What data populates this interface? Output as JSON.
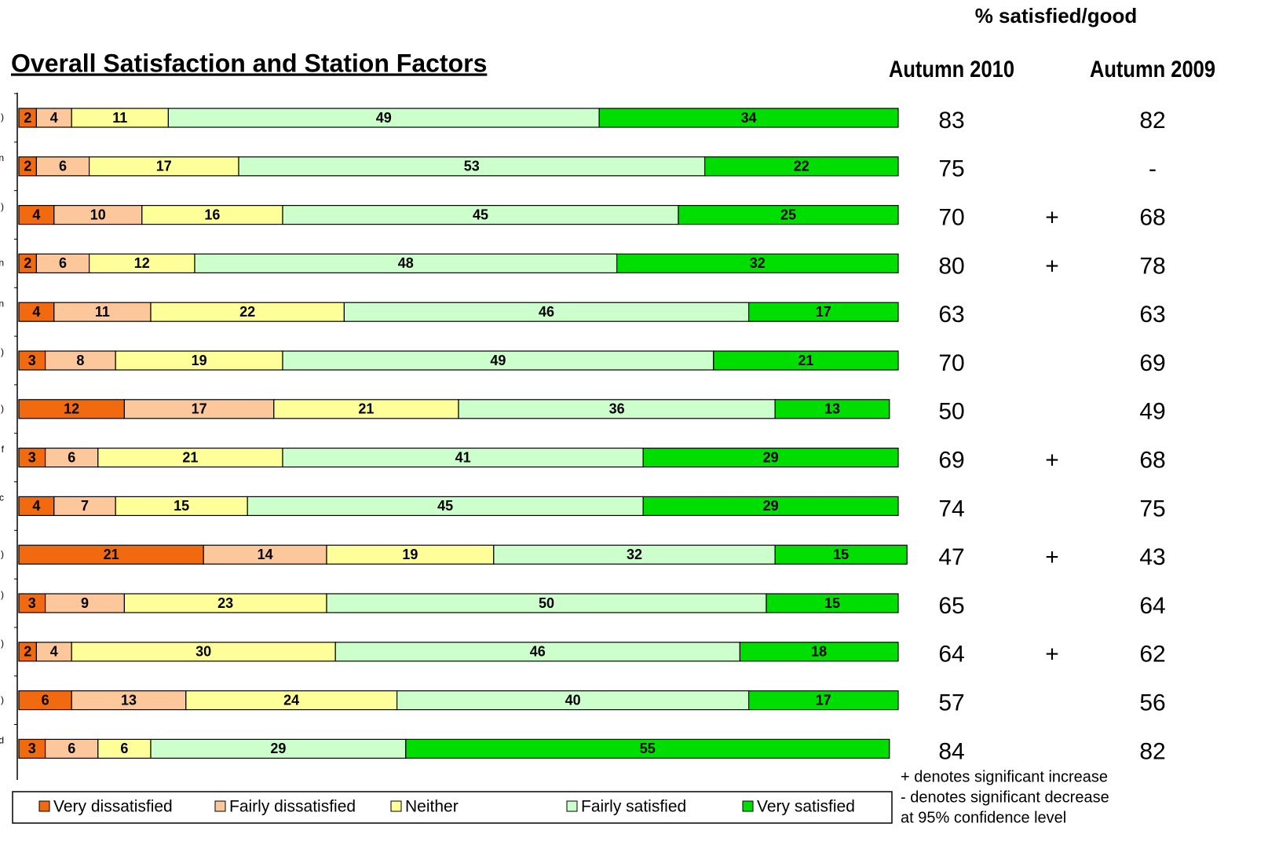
{
  "chart_data": {
    "type": "bar",
    "orientation": "horizontal",
    "stacked": true,
    "title": "Overall Satisfaction and Station Factors",
    "categories": [
      ")",
      "n",
      ")",
      "n",
      "n",
      ")",
      ")",
      "f",
      "c",
      ")",
      ")",
      ")",
      ")",
      "d"
    ],
    "xlim": [
      0,
      100
    ],
    "series": [
      {
        "name": "Very dissatisfied",
        "color": "#f26a0f",
        "values": [
          2,
          2,
          4,
          2,
          4,
          3,
          12,
          3,
          4,
          21,
          3,
          2,
          6,
          3
        ]
      },
      {
        "name": "Fairly dissatisfied",
        "color": "#fcc79a",
        "values": [
          4,
          6,
          10,
          6,
          11,
          8,
          17,
          6,
          7,
          14,
          9,
          4,
          13,
          6
        ]
      },
      {
        "name": "Neither",
        "color": "#ffff99",
        "values": [
          11,
          17,
          16,
          12,
          22,
          19,
          21,
          21,
          15,
          19,
          23,
          30,
          24,
          6
        ]
      },
      {
        "name": "Fairly satisfied",
        "color": "#ccffcc",
        "values": [
          49,
          53,
          45,
          48,
          46,
          49,
          36,
          41,
          45,
          32,
          50,
          46,
          40,
          29
        ]
      },
      {
        "name": "Very satisfied",
        "color": "#00dd00",
        "values": [
          34,
          22,
          25,
          32,
          17,
          21,
          13,
          29,
          29,
          15,
          15,
          18,
          17,
          55
        ]
      }
    ]
  },
  "table": {
    "title": "% satisfied/good",
    "columns": [
      "Autumn 2010",
      "Autumn 2009"
    ],
    "autumn_2010": [
      83,
      75,
      70,
      80,
      63,
      70,
      50,
      69,
      74,
      47,
      65,
      64,
      57,
      84
    ],
    "significance": [
      null,
      null,
      "+",
      "+",
      null,
      null,
      null,
      "+",
      null,
      "+",
      null,
      "+",
      null,
      null
    ],
    "autumn_2009": [
      82,
      "-",
      68,
      78,
      63,
      69,
      49,
      68,
      75,
      43,
      64,
      62,
      56,
      82
    ]
  },
  "notes": [
    "+ denotes significant increase",
    "- denotes significant decrease",
    "at 95% confidence level"
  ]
}
